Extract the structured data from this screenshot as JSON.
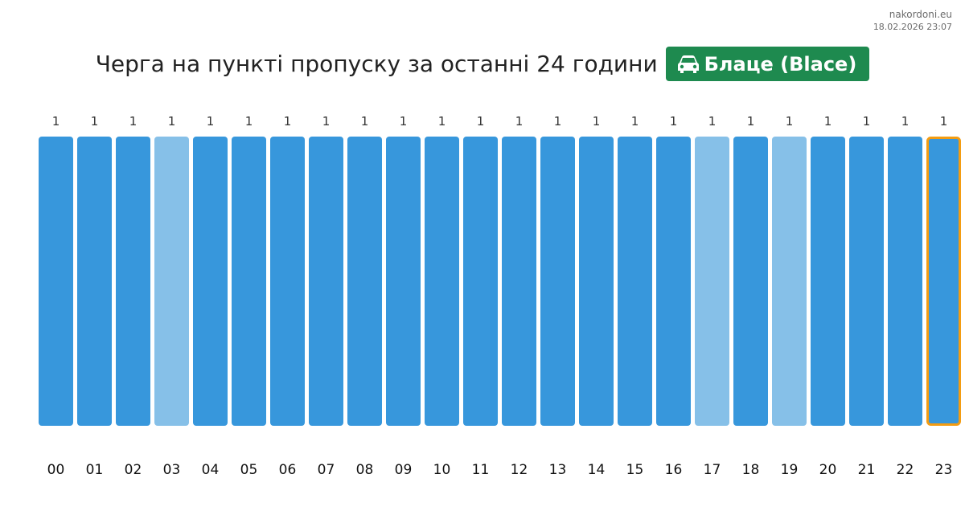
{
  "site": {
    "domain": "nakordoni.eu",
    "timestamp": "18.02.2026 23:07"
  },
  "header": {
    "title": "Черга на пункті пропуску за останні 24 години",
    "checkpoint_label": "Блаце (Blace)",
    "checkpoint_icon": "car-icon",
    "badge_color": "#1e8a4f"
  },
  "colors": {
    "bar": "#3797dc",
    "bar_light": "#86c0e8",
    "current_outline": "#f39c12",
    "label": "#333333"
  },
  "chart_data": {
    "type": "bar",
    "categories": [
      "00",
      "01",
      "02",
      "03",
      "04",
      "05",
      "06",
      "07",
      "08",
      "09",
      "10",
      "11",
      "12",
      "13",
      "14",
      "15",
      "16",
      "17",
      "18",
      "19",
      "20",
      "21",
      "22",
      "23"
    ],
    "values": [
      1,
      1,
      1,
      1,
      1,
      1,
      1,
      1,
      1,
      1,
      1,
      1,
      1,
      1,
      1,
      1,
      1,
      1,
      1,
      1,
      1,
      1,
      1,
      1
    ],
    "light_bars": [
      "03",
      "17",
      "19"
    ],
    "current_hour": "23",
    "title": "Черга на пункті пропуску за останні 24 години",
    "xlabel": "",
    "ylabel": "",
    "ylim": [
      0,
      1
    ],
    "grid": false,
    "legend": "none"
  }
}
